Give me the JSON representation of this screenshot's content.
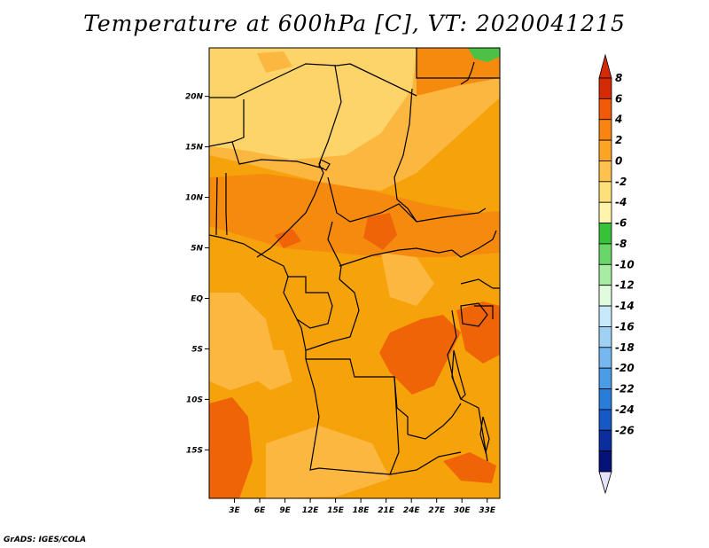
{
  "title": "Temperature at 600hPa [C], VT: 2020041215",
  "credit": "GrADS: IGES/COLA",
  "map": {
    "lon_ticks": [
      "3E",
      "6E",
      "9E",
      "12E",
      "15E",
      "18E",
      "21E",
      "24E",
      "27E",
      "30E",
      "33E"
    ],
    "lat_ticks": [
      "20N",
      "15N",
      "10N",
      "5N",
      "EQ",
      "5S",
      "10S",
      "15S"
    ],
    "lon_values": [
      3,
      6,
      9,
      12,
      15,
      18,
      21,
      24,
      27,
      30,
      33
    ],
    "lat_values": [
      20,
      15,
      10,
      5,
      0,
      -5,
      -10,
      -15
    ],
    "lon_range": [
      0,
      34.5
    ],
    "lat_range": [
      -19.8,
      24.8
    ]
  },
  "colorbar": {
    "labels": [
      "8",
      "6",
      "4",
      "2",
      "0",
      "-2",
      "-4",
      "-6",
      "-8",
      "-10",
      "-12",
      "-14",
      "-16",
      "-18",
      "-20",
      "-22",
      "-24",
      "-26"
    ],
    "colors": [
      "#d52a06",
      "#f05a08",
      "#f9840f",
      "#fca524",
      "#fdc14d",
      "#fde07a",
      "#fef4ab",
      "#37c23a",
      "#6ad66a",
      "#a6eca2",
      "#e0fbdd",
      "#c7e9fb",
      "#9fd1f5",
      "#75b7ee",
      "#4b9be5",
      "#2a7cd9",
      "#1658c6",
      "#0b2d9e",
      "#051378"
    ],
    "max_arrow_color": "#d52a06",
    "min_arrow_color": "#e6e4fb"
  },
  "colors": {
    "base": "#f6a20a",
    "warm": "#f58a0f",
    "hot": "#f06408",
    "cool": "#fcb741",
    "cooler": "#fdd46a",
    "cold": "#feeca0",
    "green": "#4cc145"
  }
}
